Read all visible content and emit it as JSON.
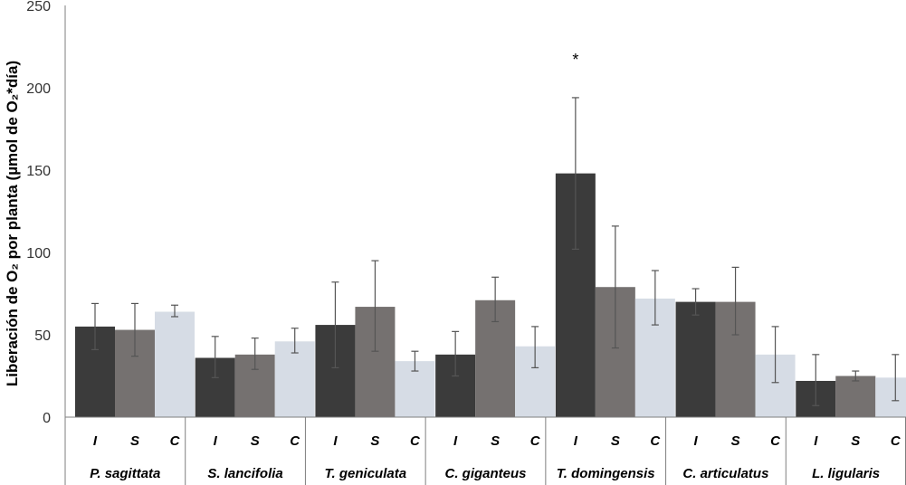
{
  "chart_data": {
    "type": "bar",
    "title": "",
    "ylabel": "Liberación de O₂ por planta (µmol de O₂*día)",
    "xlabel": "",
    "ylim": [
      0,
      250
    ],
    "yticks": [
      "0",
      "50",
      "100",
      "150",
      "200",
      "250"
    ],
    "subcategories": [
      "I",
      "S",
      "C"
    ],
    "categories": [
      "P. sagittata",
      "S. lancifolia",
      "T. geniculata",
      "C. giganteus",
      "T. domingensis",
      "C. articulatus",
      "L. ligularis"
    ],
    "series": [
      {
        "name": "I",
        "color": "#3b3b3b",
        "values": [
          55,
          36,
          56,
          38,
          148,
          70,
          22
        ],
        "err_low": [
          41,
          24,
          30,
          25,
          102,
          62,
          7
        ],
        "err_high": [
          69,
          49,
          82,
          52,
          194,
          78,
          38
        ]
      },
      {
        "name": "S",
        "color": "#757170",
        "values": [
          53,
          38,
          67,
          71,
          79,
          70,
          25
        ],
        "err_low": [
          37,
          29,
          40,
          58,
          42,
          50,
          22
        ],
        "err_high": [
          69,
          48,
          95,
          85,
          116,
          91,
          28
        ]
      },
      {
        "name": "C",
        "color": "#d6dce5",
        "values": [
          64,
          46,
          34,
          43,
          72,
          38,
          24
        ],
        "err_low": [
          61,
          39,
          28,
          30,
          56,
          21,
          10
        ],
        "err_high": [
          68,
          54,
          40,
          55,
          89,
          55,
          38
        ]
      }
    ],
    "annotations": [
      {
        "text": "*",
        "category": "T. domingensis",
        "series": "I",
        "value": 218
      }
    ]
  }
}
